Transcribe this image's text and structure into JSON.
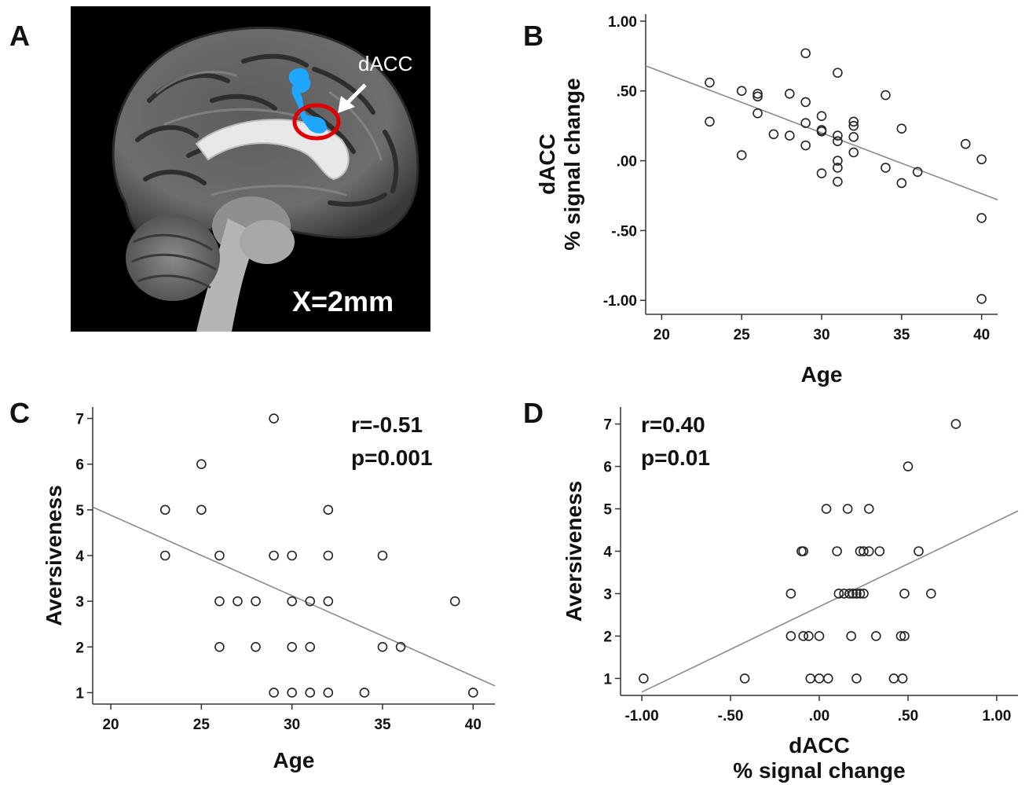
{
  "panels": {
    "a": {
      "letter": "A",
      "arrow_label": "dACC",
      "slice_label": "X=2mm"
    },
    "b": {
      "letter": "B"
    },
    "c": {
      "letter": "C",
      "stat_r": "r=-0.51",
      "stat_p": "p=0.001"
    },
    "d": {
      "letter": "D",
      "stat_r": "r=0.40",
      "stat_p": "p=0.01"
    }
  },
  "colors": {
    "activation": "#1fa6ff",
    "circle": "#e00000",
    "points": "#222222",
    "fit_line": "#8a8a8a"
  },
  "chart_data": [
    {
      "id": "B",
      "type": "scatter",
      "xlabel": "Age",
      "ylabel": [
        "dACC",
        "% signal change"
      ],
      "xlim": [
        19,
        41
      ],
      "ylim": [
        -1.1,
        1.05
      ],
      "xticks": [
        20,
        25,
        30,
        35,
        40
      ],
      "xtick_labels": [
        "20",
        "25",
        "30",
        "35",
        "40"
      ],
      "yticks": [
        -1.0,
        -0.5,
        0.0,
        0.5,
        1.0
      ],
      "ytick_labels": [
        "-1.00",
        "-.50",
        ".00",
        ".50",
        "1.00"
      ],
      "fit_line": {
        "x": [
          19,
          41
        ],
        "y": [
          0.68,
          -0.28
        ]
      },
      "points": [
        [
          23,
          0.56
        ],
        [
          23,
          0.28
        ],
        [
          25,
          0.5
        ],
        [
          25,
          0.04
        ],
        [
          26,
          0.48
        ],
        [
          26,
          0.46
        ],
        [
          26,
          0.34
        ],
        [
          27,
          0.19
        ],
        [
          28,
          0.48
        ],
        [
          28,
          0.18
        ],
        [
          29,
          0.77
        ],
        [
          29,
          0.42
        ],
        [
          29,
          0.27
        ],
        [
          29,
          0.11
        ],
        [
          30,
          0.32
        ],
        [
          30,
          0.22
        ],
        [
          30,
          0.21
        ],
        [
          30,
          -0.09
        ],
        [
          31,
          0.63
        ],
        [
          31,
          0.18
        ],
        [
          31,
          0.14
        ],
        [
          31,
          0.0
        ],
        [
          31,
          -0.05
        ],
        [
          31,
          -0.15
        ],
        [
          32,
          0.28
        ],
        [
          32,
          0.25
        ],
        [
          32,
          0.17
        ],
        [
          32,
          0.06
        ],
        [
          34,
          0.47
        ],
        [
          34,
          -0.05
        ],
        [
          35,
          0.23
        ],
        [
          35,
          -0.16
        ],
        [
          36,
          -0.08
        ],
        [
          39,
          0.12
        ],
        [
          40,
          0.01
        ],
        [
          40,
          -0.41
        ],
        [
          40,
          -0.99
        ]
      ]
    },
    {
      "id": "C",
      "type": "scatter",
      "xlabel": "Age",
      "ylabel": "Aversiveness",
      "xlim": [
        19,
        41.2
      ],
      "ylim": [
        0.75,
        7.25
      ],
      "xticks": [
        20,
        25,
        30,
        35,
        40
      ],
      "xtick_labels": [
        "20",
        "25",
        "30",
        "35",
        "40"
      ],
      "yticks": [
        1,
        2,
        3,
        4,
        5,
        6,
        7
      ],
      "ytick_labels": [
        "1",
        "2",
        "3",
        "4",
        "5",
        "6",
        "7"
      ],
      "fit_line": {
        "x": [
          19,
          41.2
        ],
        "y": [
          5.06,
          1.15
        ]
      },
      "points": [
        [
          23,
          5
        ],
        [
          23,
          4
        ],
        [
          25,
          6
        ],
        [
          25,
          5
        ],
        [
          26,
          4
        ],
        [
          26,
          3
        ],
        [
          26,
          2
        ],
        [
          27,
          3
        ],
        [
          28,
          3
        ],
        [
          28,
          2
        ],
        [
          29,
          7
        ],
        [
          29,
          4
        ],
        [
          29,
          1
        ],
        [
          30,
          4
        ],
        [
          30,
          3
        ],
        [
          30,
          2
        ],
        [
          30,
          1
        ],
        [
          31,
          3
        ],
        [
          31,
          2
        ],
        [
          31,
          1
        ],
        [
          32,
          5
        ],
        [
          32,
          4
        ],
        [
          32,
          3
        ],
        [
          32,
          1
        ],
        [
          34,
          1
        ],
        [
          35,
          4
        ],
        [
          35,
          2
        ],
        [
          36,
          2
        ],
        [
          39,
          3
        ],
        [
          40,
          1
        ]
      ]
    },
    {
      "id": "D",
      "type": "scatter",
      "xlabel": [
        "dACC",
        "% signal change"
      ],
      "ylabel": "Aversiveness",
      "xlim": [
        -1.12,
        1.12
      ],
      "ylim": [
        0.6,
        7.4
      ],
      "xticks": [
        -1.0,
        -0.5,
        0.0,
        0.5,
        1.0
      ],
      "xtick_labels": [
        "-1.00",
        "-.50",
        ".00",
        ".50",
        "1.00"
      ],
      "yticks": [
        1,
        2,
        3,
        4,
        5,
        6,
        7
      ],
      "ytick_labels": [
        "1",
        "2",
        "3",
        "4",
        "5",
        "6",
        "7"
      ],
      "fit_line": {
        "x": [
          -1.0,
          1.12
        ],
        "y": [
          0.68,
          4.95
        ]
      },
      "points": [
        [
          -0.99,
          1
        ],
        [
          -0.42,
          1
        ],
        [
          -0.16,
          3
        ],
        [
          -0.16,
          2
        ],
        [
          -0.1,
          4
        ],
        [
          -0.09,
          4
        ],
        [
          -0.09,
          2
        ],
        [
          -0.06,
          2
        ],
        [
          -0.05,
          1
        ],
        [
          0.0,
          2
        ],
        [
          0.0,
          1
        ],
        [
          0.04,
          5
        ],
        [
          0.05,
          1
        ],
        [
          0.1,
          4
        ],
        [
          0.11,
          3
        ],
        [
          0.14,
          3
        ],
        [
          0.16,
          5
        ],
        [
          0.17,
          3
        ],
        [
          0.18,
          2
        ],
        [
          0.19,
          3
        ],
        [
          0.21,
          3
        ],
        [
          0.21,
          1
        ],
        [
          0.23,
          4
        ],
        [
          0.23,
          3
        ],
        [
          0.25,
          4
        ],
        [
          0.25,
          3
        ],
        [
          0.28,
          5
        ],
        [
          0.28,
          4
        ],
        [
          0.32,
          2
        ],
        [
          0.34,
          4
        ],
        [
          0.42,
          1
        ],
        [
          0.46,
          2
        ],
        [
          0.47,
          1
        ],
        [
          0.48,
          2
        ],
        [
          0.48,
          3
        ],
        [
          0.5,
          6
        ],
        [
          0.56,
          4
        ],
        [
          0.63,
          3
        ],
        [
          0.77,
          7
        ]
      ]
    }
  ]
}
